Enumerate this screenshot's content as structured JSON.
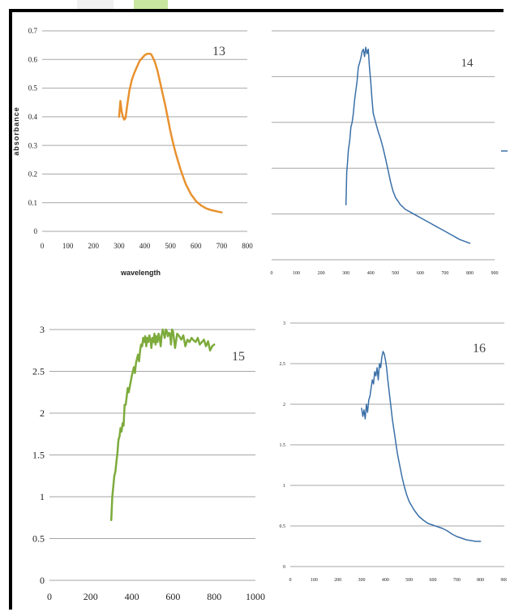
{
  "colors": {
    "orange": "#E8912F",
    "blue": "#3A6FA8",
    "green": "#7DAB3C",
    "grid": "#A6A6A6",
    "frame": "#000000"
  },
  "chart_data": [
    {
      "type": "line",
      "title": "13",
      "xlabel": "wavelength",
      "ylabel": "absorbance",
      "xlim": [
        0,
        800
      ],
      "ylim": [
        0,
        0.7
      ],
      "xticks": [
        "0",
        "100",
        "200",
        "300",
        "400",
        "500",
        "600",
        "700",
        "800"
      ],
      "yticks": [
        "0",
        "0.1",
        "0.2",
        "0.3",
        "0.4",
        "0.5",
        "0.6",
        "0.7"
      ],
      "grid": true,
      "color": "#E8912F",
      "series": [
        {
          "x": [
            300,
            305,
            310,
            315,
            320,
            325,
            330,
            340,
            350,
            360,
            370,
            380,
            390,
            400,
            410,
            420,
            425,
            430,
            440,
            450,
            460,
            470,
            480,
            490,
            500,
            510,
            520,
            530,
            540,
            550,
            560,
            580,
            600,
            620,
            640,
            660,
            680,
            700
          ],
          "y": [
            0.4,
            0.455,
            0.42,
            0.4,
            0.39,
            0.395,
            0.43,
            0.49,
            0.53,
            0.555,
            0.575,
            0.595,
            0.605,
            0.615,
            0.62,
            0.62,
            0.618,
            0.61,
            0.59,
            0.56,
            0.52,
            0.48,
            0.44,
            0.395,
            0.35,
            0.31,
            0.275,
            0.245,
            0.215,
            0.19,
            0.165,
            0.13,
            0.105,
            0.09,
            0.08,
            0.074,
            0.07,
            0.066
          ]
        }
      ]
    },
    {
      "type": "line",
      "title": "14",
      "xlim": [
        0,
        900
      ],
      "ylim": [
        0,
        2.5
      ],
      "xticks": [
        "0",
        "100",
        "200",
        "300",
        "400",
        "500",
        "600",
        "700",
        "800",
        "900"
      ],
      "yticks": [],
      "grid": true,
      "color": "#3A6FA8",
      "series": [
        {
          "x": [
            300,
            303,
            306,
            310,
            315,
            320,
            325,
            330,
            335,
            340,
            345,
            350,
            355,
            360,
            365,
            370,
            375,
            380,
            385,
            390,
            395,
            400,
            405,
            410,
            420,
            430,
            440,
            450,
            460,
            470,
            480,
            490,
            500,
            520,
            540,
            560,
            580,
            600,
            620,
            640,
            660,
            680,
            700,
            720,
            740,
            760,
            780,
            800
          ],
          "y": [
            0.6,
            0.95,
            1.05,
            1.2,
            1.3,
            1.45,
            1.5,
            1.6,
            1.75,
            1.85,
            1.95,
            2.1,
            2.15,
            2.2,
            2.27,
            2.3,
            2.22,
            2.32,
            2.25,
            2.3,
            2.1,
            1.95,
            1.75,
            1.6,
            1.5,
            1.4,
            1.32,
            1.22,
            1.1,
            0.98,
            0.85,
            0.75,
            0.68,
            0.6,
            0.55,
            0.52,
            0.49,
            0.46,
            0.43,
            0.4,
            0.37,
            0.34,
            0.31,
            0.28,
            0.25,
            0.22,
            0.2,
            0.18
          ]
        }
      ]
    },
    {
      "type": "line",
      "title": "15",
      "xlim": [
        0,
        1000
      ],
      "ylim": [
        0,
        3
      ],
      "xticks": [
        "0",
        "200",
        "400",
        "600",
        "800",
        "1000"
      ],
      "yticks": [
        "0",
        "0.5",
        "1",
        "1.5",
        "2",
        "2.5",
        "3"
      ],
      "grid": true,
      "color": "#7DAB3C",
      "series": [
        {
          "x": [
            300,
            305,
            310,
            315,
            320,
            325,
            330,
            335,
            340,
            345,
            350,
            355,
            360,
            365,
            370,
            375,
            380,
            385,
            390,
            395,
            400,
            405,
            410,
            415,
            420,
            425,
            430,
            435,
            440,
            445,
            450,
            455,
            460,
            465,
            470,
            475,
            480,
            485,
            490,
            495,
            500,
            505,
            510,
            515,
            520,
            525,
            530,
            535,
            540,
            545,
            550,
            555,
            560,
            565,
            570,
            575,
            580,
            585,
            590,
            595,
            600,
            610,
            620,
            630,
            640,
            650,
            660,
            670,
            680,
            690,
            700,
            710,
            720,
            730,
            740,
            750,
            760,
            770,
            780,
            790,
            800
          ],
          "y": [
            0.72,
            1.0,
            1.12,
            1.25,
            1.3,
            1.42,
            1.52,
            1.68,
            1.72,
            1.82,
            1.78,
            1.88,
            1.85,
            2.1,
            2.1,
            2.2,
            2.3,
            2.25,
            2.32,
            2.38,
            2.45,
            2.5,
            2.55,
            2.48,
            2.6,
            2.65,
            2.7,
            2.62,
            2.75,
            2.82,
            2.8,
            2.9,
            2.85,
            2.92,
            2.8,
            2.9,
            2.85,
            2.93,
            2.88,
            2.78,
            2.9,
            2.85,
            2.95,
            2.82,
            2.92,
            2.85,
            2.95,
            2.9,
            2.8,
            2.93,
            3.0,
            2.95,
            2.9,
            3.0,
            2.98,
            2.92,
            2.96,
            2.95,
            2.82,
            3.0,
            2.98,
            2.78,
            2.95,
            2.92,
            2.88,
            2.93,
            2.8,
            2.88,
            2.85,
            2.9,
            2.87,
            2.85,
            2.9,
            2.82,
            2.85,
            2.88,
            2.8,
            2.86,
            2.75,
            2.8,
            2.82
          ]
        }
      ]
    },
    {
      "type": "line",
      "title": "16",
      "xlim": [
        0,
        900
      ],
      "ylim": [
        0,
        3
      ],
      "xticks": [
        "0",
        "100",
        "200",
        "300",
        "400",
        "500",
        "600",
        "700",
        "800",
        "900"
      ],
      "yticks": [
        "0",
        "0.5",
        "1",
        "1.5",
        "2",
        "2.5",
        "3"
      ],
      "grid": true,
      "color": "#3A6FA8",
      "series": [
        {
          "x": [
            300,
            305,
            310,
            315,
            320,
            325,
            330,
            335,
            340,
            345,
            350,
            355,
            360,
            365,
            370,
            375,
            380,
            385,
            390,
            395,
            400,
            405,
            410,
            420,
            430,
            440,
            450,
            460,
            470,
            480,
            490,
            500,
            520,
            540,
            560,
            580,
            600,
            620,
            640,
            660,
            680,
            700,
            720,
            740,
            760,
            780,
            800
          ],
          "y": [
            1.95,
            1.85,
            1.93,
            1.82,
            2.0,
            1.9,
            2.05,
            2.1,
            2.2,
            2.3,
            2.25,
            2.4,
            2.35,
            2.45,
            2.3,
            2.5,
            2.45,
            2.58,
            2.65,
            2.62,
            2.55,
            2.45,
            2.3,
            2.05,
            1.8,
            1.6,
            1.4,
            1.25,
            1.1,
            0.98,
            0.88,
            0.8,
            0.7,
            0.62,
            0.57,
            0.53,
            0.51,
            0.49,
            0.47,
            0.44,
            0.4,
            0.37,
            0.35,
            0.33,
            0.32,
            0.31,
            0.31
          ]
        }
      ]
    }
  ]
}
